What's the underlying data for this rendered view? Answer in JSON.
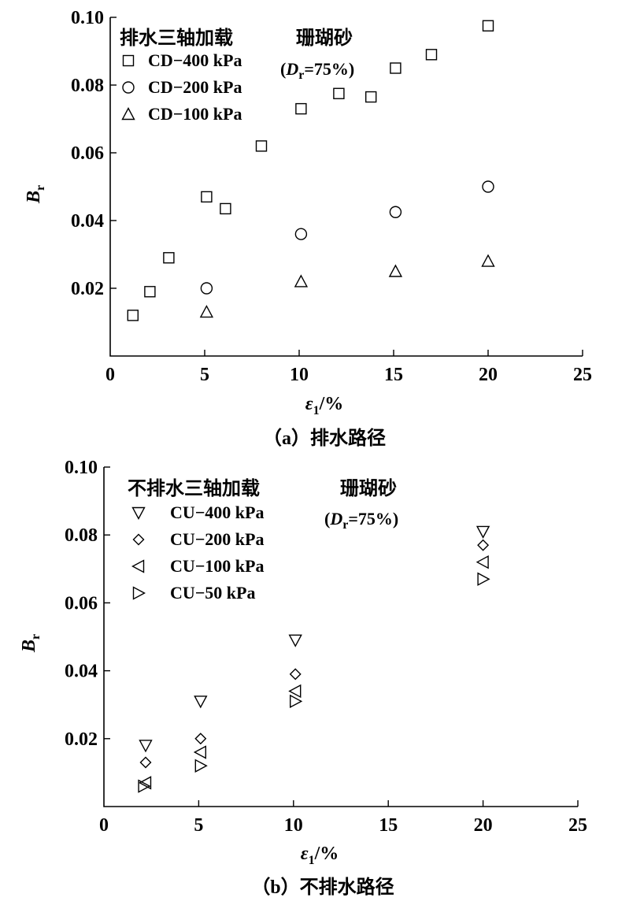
{
  "chart_data": [
    {
      "type": "scatter",
      "caption": "（a）排水路径",
      "legend_title": "排水三轴加载",
      "material": "珊瑚砂",
      "dr_note": {
        "open": "(",
        "var": "D",
        "sub": "r",
        "rest": "=75%)"
      },
      "xlabel": {
        "main": "ε",
        "sub": "1",
        "rest": "/%"
      },
      "ylabel": {
        "main": "B",
        "sub": "r"
      },
      "xlim": [
        0,
        25
      ],
      "ylim": [
        0,
        0.1
      ],
      "x_ticks": [
        "0",
        "5",
        "10",
        "15",
        "20",
        "25"
      ],
      "y_ticks": [
        "0.02",
        "0.04",
        "0.06",
        "0.08",
        "0.10"
      ],
      "series": [
        {
          "name": "CD−400 kPa",
          "marker": "square",
          "points": [
            [
              1.2,
              0.012
            ],
            [
              2.1,
              0.019
            ],
            [
              3.1,
              0.029
            ],
            [
              5.1,
              0.047
            ],
            [
              6.1,
              0.0435
            ],
            [
              8.0,
              0.062
            ],
            [
              10.1,
              0.073
            ],
            [
              12.1,
              0.0775
            ],
            [
              13.8,
              0.0765
            ],
            [
              15.1,
              0.085
            ],
            [
              17.0,
              0.089
            ],
            [
              20.0,
              0.0975
            ]
          ]
        },
        {
          "name": "CD−200 kPa",
          "marker": "circle",
          "points": [
            [
              5.1,
              0.02
            ],
            [
              10.1,
              0.036
            ],
            [
              15.1,
              0.0425
            ],
            [
              20.0,
              0.05
            ]
          ]
        },
        {
          "name": "CD−100 kPa",
          "marker": "triangle-up",
          "points": [
            [
              5.1,
              0.013
            ],
            [
              10.1,
              0.022
            ],
            [
              15.1,
              0.025
            ],
            [
              20.0,
              0.028
            ]
          ]
        }
      ]
    },
    {
      "type": "scatter",
      "caption": "（b）不排水路径",
      "legend_title": "不排水三轴加载",
      "material": "珊瑚砂",
      "dr_note": {
        "open": "(",
        "var": "D",
        "sub": "r",
        "rest": "=75%)"
      },
      "xlabel": {
        "main": "ε",
        "sub": "1",
        "rest": "/%"
      },
      "ylabel": {
        "main": "B",
        "sub": "r"
      },
      "xlim": [
        0,
        25
      ],
      "ylim": [
        0,
        0.1
      ],
      "x_ticks": [
        "0",
        "5",
        "10",
        "15",
        "20",
        "25"
      ],
      "y_ticks": [
        "0.02",
        "0.04",
        "0.06",
        "0.08",
        "0.10"
      ],
      "series": [
        {
          "name": "CU−400 kPa",
          "marker": "triangle-down",
          "points": [
            [
              2.2,
              0.018
            ],
            [
              5.1,
              0.031
            ],
            [
              10.1,
              0.049
            ],
            [
              20.0,
              0.081
            ]
          ]
        },
        {
          "name": "CU−200 kPa",
          "marker": "diamond",
          "points": [
            [
              2.2,
              0.013
            ],
            [
              5.1,
              0.02
            ],
            [
              10.1,
              0.039
            ],
            [
              20.0,
              0.077
            ]
          ]
        },
        {
          "name": "CU−100 kPa",
          "marker": "triangle-left",
          "points": [
            [
              2.2,
              0.007
            ],
            [
              5.1,
              0.016
            ],
            [
              10.1,
              0.034
            ],
            [
              20.0,
              0.072
            ]
          ]
        },
        {
          "name": "CU−50 kPa",
          "marker": "triangle-right",
          "points": [
            [
              2.1,
              0.006
            ],
            [
              5.1,
              0.012
            ],
            [
              10.1,
              0.031
            ],
            [
              20.0,
              0.067
            ]
          ]
        }
      ]
    }
  ]
}
